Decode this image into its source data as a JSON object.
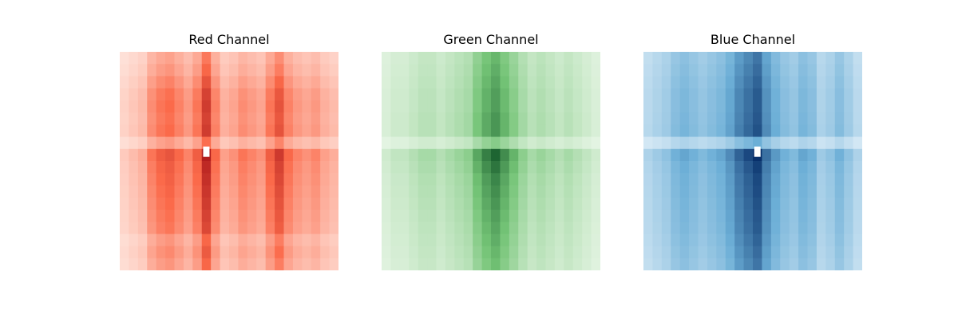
{
  "chart_data": [
    {
      "type": "heatmap",
      "title": "Red Channel",
      "colormap": "Reds",
      "colors": {
        "low": "#fff5f0",
        "mid": "#fb6a4a",
        "high": "#a50f15"
      },
      "axes_visible": false,
      "grid": false,
      "column_intensity": [
        0.15,
        0.2,
        0.25,
        0.45,
        0.55,
        0.6,
        0.5,
        0.4,
        0.55,
        0.9,
        0.5,
        0.3,
        0.35,
        0.45,
        0.4,
        0.35,
        0.55,
        0.75,
        0.5,
        0.4,
        0.35,
        0.4,
        0.3,
        0.25
      ],
      "row_intensity": [
        0.2,
        0.3,
        0.45,
        0.6,
        0.65,
        0.6,
        0.65,
        0.85,
        0.9,
        0.8,
        0.75,
        0.7,
        0.65,
        0.6,
        0.55,
        0.3,
        0.4,
        0.3
      ],
      "highlight_row_index": 7,
      "saturated_spot": {
        "row": 8,
        "col": 9
      }
    },
    {
      "type": "heatmap",
      "title": "Green Channel",
      "colormap": "Greens",
      "colors": {
        "low": "#f7fcf5",
        "mid": "#74c476",
        "high": "#00441b"
      },
      "axes_visible": false,
      "grid": false,
      "column_intensity": [
        0.15,
        0.2,
        0.2,
        0.25,
        0.3,
        0.3,
        0.25,
        0.3,
        0.35,
        0.4,
        0.6,
        0.75,
        0.85,
        0.7,
        0.55,
        0.4,
        0.3,
        0.35,
        0.3,
        0.25,
        0.3,
        0.25,
        0.2,
        0.15
      ],
      "row_intensity": [
        0.4,
        0.45,
        0.5,
        0.55,
        0.55,
        0.6,
        0.6,
        0.75,
        0.9,
        0.8,
        0.7,
        0.65,
        0.6,
        0.55,
        0.5,
        0.45,
        0.4,
        0.35
      ],
      "highlight_row_index": 7,
      "saturated_spot": null
    },
    {
      "type": "heatmap",
      "title": "Blue Channel",
      "colormap": "Blues",
      "colors": {
        "low": "#f7fbff",
        "mid": "#6baed6",
        "high": "#08306b"
      },
      "axes_visible": false,
      "grid": false,
      "column_intensity": [
        0.25,
        0.3,
        0.35,
        0.45,
        0.5,
        0.45,
        0.4,
        0.45,
        0.5,
        0.6,
        0.75,
        0.85,
        0.95,
        0.7,
        0.55,
        0.45,
        0.4,
        0.5,
        0.45,
        0.3,
        0.35,
        0.45,
        0.35,
        0.25
      ],
      "row_intensity": [
        0.55,
        0.6,
        0.65,
        0.7,
        0.7,
        0.72,
        0.75,
        0.8,
        0.95,
        0.85,
        0.8,
        0.78,
        0.75,
        0.72,
        0.7,
        0.65,
        0.6,
        0.55
      ],
      "highlight_row_index": 7,
      "saturated_spot": {
        "row": 8,
        "col": 12
      }
    }
  ]
}
